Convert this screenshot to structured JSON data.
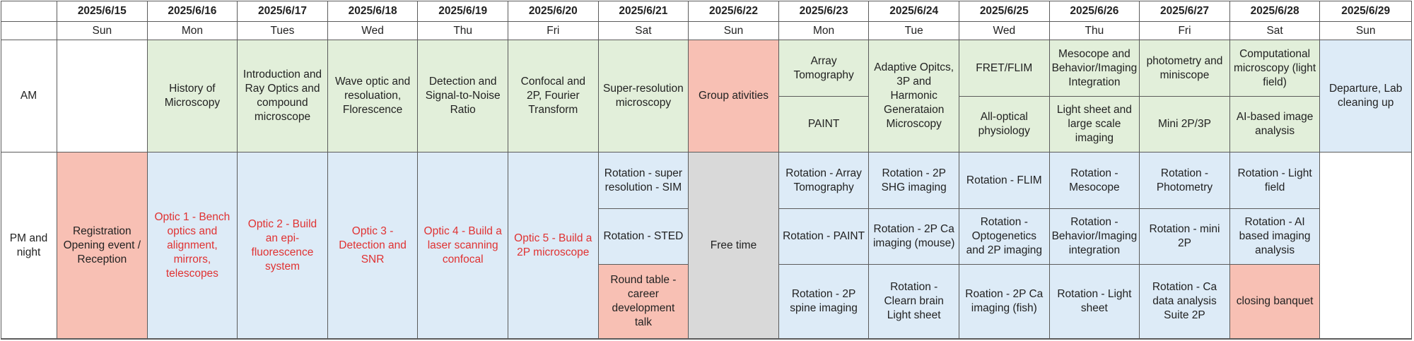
{
  "colors": {
    "white": "#ffffff",
    "green": "#e2efda",
    "blue": "#ddebf7",
    "salmon": "#f8c0b4",
    "gray": "#d9d9d9",
    "red_text": "#e03232"
  },
  "row_labels": {
    "am": "AM",
    "pm": "PM and night"
  },
  "dates": [
    "2025/6/15",
    "2025/6/16",
    "2025/6/17",
    "2025/6/18",
    "2025/6/19",
    "2025/6/20",
    "2025/6/21",
    "2025/6/22",
    "2025/6/23",
    "2025/6/24",
    "2025/6/25",
    "2025/6/26",
    "2025/6/27",
    "2025/6/28",
    "2025/6/29"
  ],
  "weekdays": [
    "Sun",
    "Mon",
    "Tues",
    "Wed",
    "Thu",
    "Fri",
    "Sat",
    "Sun",
    "Mon",
    "Tue",
    "Wed",
    "Thu",
    "Fri",
    "Sat",
    "Sun"
  ],
  "am": [
    [
      {
        "text": "",
        "color": "white"
      }
    ],
    [
      {
        "text": "History of Microscopy",
        "color": "green"
      }
    ],
    [
      {
        "text": "Introduction and Ray Optics and compound microscope",
        "color": "green"
      }
    ],
    [
      {
        "text": "Wave optic and resoluation, Florescence",
        "color": "green"
      }
    ],
    [
      {
        "text": "Detection and Signal-to-Noise Ratio",
        "color": "green"
      }
    ],
    [
      {
        "text": "Confocal and 2P, Fourier Transform",
        "color": "green"
      }
    ],
    [
      {
        "text": "Super-resolution microscopy",
        "color": "green"
      }
    ],
    [
      {
        "text": "Group ativities",
        "color": "salmon"
      }
    ],
    [
      {
        "text": "Array Tomography",
        "color": "green"
      },
      {
        "text": "PAINT",
        "color": "green"
      }
    ],
    [
      {
        "text": "Adaptive Opitcs, 3P and Harmonic Generataion Microscopy",
        "color": "green"
      }
    ],
    [
      {
        "text": "FRET/FLIM",
        "color": "green"
      },
      {
        "text": "All-optical physiology",
        "color": "green"
      }
    ],
    [
      {
        "text": "Mesocope and Behavior/Imaging Integration",
        "color": "green"
      },
      {
        "text": "Light sheet and large scale imaging",
        "color": "green"
      }
    ],
    [
      {
        "text": "photometry and miniscope",
        "color": "green"
      },
      {
        "text": "Mini 2P/3P",
        "color": "green"
      }
    ],
    [
      {
        "text": "Computational microscopy (light field)",
        "color": "green"
      },
      {
        "text": "AI-based image analysis",
        "color": "green"
      }
    ],
    [
      {
        "text": "Departure, Lab cleaning up",
        "color": "blue"
      }
    ]
  ],
  "pm": [
    [
      {
        "text": "Registration Opening event / Reception",
        "color": "salmon"
      }
    ],
    [
      {
        "text": "Optic 1 - Bench optics and alignment, mirrors, telescopes",
        "color": "blue",
        "red": true
      }
    ],
    [
      {
        "text": "Optic 2 - Build an epi-fluorescence system",
        "color": "blue",
        "red": true
      }
    ],
    [
      {
        "text": "Optic 3 - Detection and SNR",
        "color": "blue",
        "red": true
      }
    ],
    [
      {
        "text": "Optic 4 - Build a laser scanning confocal",
        "color": "blue",
        "red": true
      }
    ],
    [
      {
        "text": "Optic 5 - Build a 2P microscope",
        "color": "blue",
        "red": true
      }
    ],
    [
      {
        "text": "Rotation - super resolution - SIM",
        "color": "blue"
      },
      {
        "text": "Rotation - STED",
        "color": "blue"
      },
      {
        "text": "Round table - career development talk",
        "color": "salmon"
      }
    ],
    [
      {
        "text": "Free time",
        "color": "gray"
      }
    ],
    [
      {
        "text": "Rotation - Array Tomography",
        "color": "blue"
      },
      {
        "text": "Rotation - PAINT",
        "color": "blue"
      },
      {
        "text": "Rotation - 2P spine imaging",
        "color": "blue"
      }
    ],
    [
      {
        "text": "Rotation - 2P SHG imaging",
        "color": "blue"
      },
      {
        "text": "Rotation - 2P Ca imaging (mouse)",
        "color": "blue"
      },
      {
        "text": "Rotation - Clearn brain Light sheet",
        "color": "blue"
      }
    ],
    [
      {
        "text": "Rotation - FLIM",
        "color": "blue"
      },
      {
        "text": "Rotation - Optogenetics and 2P imaging",
        "color": "blue"
      },
      {
        "text": "Roation - 2P Ca imaging (fish)",
        "color": "blue"
      }
    ],
    [
      {
        "text": "Rotation - Mesocope",
        "color": "blue"
      },
      {
        "text": "Rotation - Behavior/Imaging integration",
        "color": "blue"
      },
      {
        "text": "Rotation - Light sheet",
        "color": "blue"
      }
    ],
    [
      {
        "text": "Rotation - Photometry",
        "color": "blue"
      },
      {
        "text": "Rotation - mini 2P",
        "color": "blue"
      },
      {
        "text": "Rotation - Ca data analysis Suite 2P",
        "color": "blue"
      }
    ],
    [
      {
        "text": "Rotation - Light field",
        "color": "blue"
      },
      {
        "text": "Rotation - AI based imaging analysis",
        "color": "blue"
      },
      {
        "text": "closing banquet",
        "color": "salmon"
      }
    ],
    [
      {
        "text": "",
        "color": "white"
      }
    ]
  ]
}
